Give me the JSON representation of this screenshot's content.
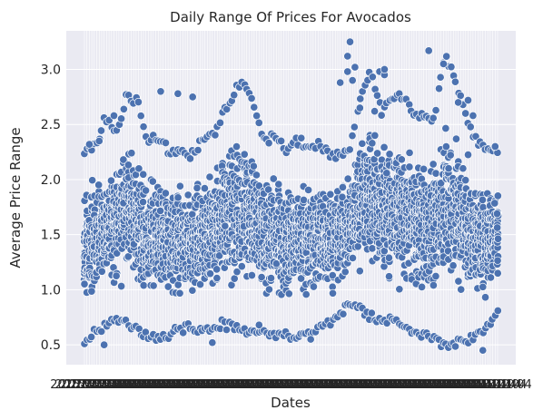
{
  "chart_data": {
    "type": "scatter",
    "title": "Daily Range Of Prices For Avocados",
    "xlabel": "Dates",
    "ylabel": "Average Price Range",
    "x_tick_label_note": "dense overlapping date labels (unreadable)",
    "x_tick_label_sample": "2015-01-04",
    "ylim": [
      0.32,
      3.35
    ],
    "yticks": [
      "0.5",
      "1.0",
      "1.5",
      "2.0",
      "2.5",
      "3.0"
    ],
    "grid": true,
    "background": "#eaeaf2",
    "point_color": "#4c72b0",
    "x_count": 169,
    "envelope_upper": [
      2.3,
      2.35,
      2.6,
      2.45,
      2.8,
      2.75,
      2.4,
      2.42,
      2.3,
      2.28,
      2.25,
      2.38,
      2.42,
      2.62,
      2.8,
      2.95,
      2.7,
      2.38,
      2.45,
      2.3,
      2.4,
      2.35,
      2.36,
      2.28,
      2.25,
      2.3,
      2.75,
      3.05,
      2.65,
      2.75,
      2.8,
      2.65,
      2.62,
      2.6,
      3.15,
      2.95,
      2.6,
      2.4,
      2.3,
      2.3
    ],
    "envelope_lower": [
      0.5,
      0.6,
      0.62,
      0.7,
      0.65,
      0.6,
      0.55,
      0.52,
      0.55,
      0.6,
      0.62,
      0.6,
      0.62,
      0.65,
      0.62,
      0.6,
      0.58,
      0.55,
      0.56,
      0.55,
      0.52,
      0.55,
      0.6,
      0.65,
      0.75,
      0.82,
      0.78,
      0.72,
      0.7,
      0.68,
      0.62,
      0.6,
      0.55,
      0.5,
      0.45,
      0.48,
      0.5,
      0.55,
      0.62,
      0.8
    ],
    "outliers": [
      {
        "xi": 108,
        "y": 3.25
      },
      {
        "xi": 107,
        "y": 3.12
      },
      {
        "xi": 110,
        "y": 3.02
      },
      {
        "xi": 109,
        "y": 2.9
      },
      {
        "xi": 107,
        "y": 2.98
      },
      {
        "xi": 104,
        "y": 2.88
      },
      {
        "xi": 140,
        "y": 3.17
      },
      {
        "xi": 146,
        "y": 3.05
      },
      {
        "xi": 12,
        "y": 2.58
      },
      {
        "xi": 31,
        "y": 2.8
      },
      {
        "xi": 38,
        "y": 2.78
      },
      {
        "xi": 44,
        "y": 2.75
      },
      {
        "xi": 6,
        "y": 2.35
      },
      {
        "xi": 2,
        "y": 2.32
      },
      {
        "xi": 152,
        "y": 2.7
      },
      {
        "xi": 156,
        "y": 2.72
      },
      {
        "xi": 112,
        "y": 2.65
      },
      {
        "xi": 118,
        "y": 2.62
      },
      {
        "xi": 120,
        "y": 2.98
      },
      {
        "xi": 122,
        "y": 2.95
      },
      {
        "xi": 122,
        "y": 3.0
      },
      {
        "xi": 158,
        "y": 2.58
      },
      {
        "xi": 167,
        "y": 2.3
      },
      {
        "xi": 8,
        "y": 0.5
      },
      {
        "xi": 162,
        "y": 0.45
      },
      {
        "xi": 71,
        "y": 0.68
      },
      {
        "xi": 92,
        "y": 0.55
      },
      {
        "xi": 52,
        "y": 0.52
      }
    ]
  }
}
